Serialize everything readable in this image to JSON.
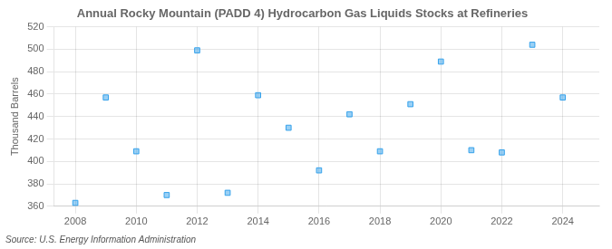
{
  "chart_data": {
    "type": "scatter",
    "title": "Annual Rocky Mountain (PADD 4) Hydrocarbon Gas Liquids Stocks at Refineries",
    "ylabel": "Thousand Barrels",
    "annotations": [
      "Source: U.S. Energy Information Administration"
    ],
    "x": [
      2008,
      2009,
      2010,
      2011,
      2012,
      2013,
      2014,
      2015,
      2016,
      2017,
      2018,
      2019,
      2020,
      2021,
      2022,
      2023,
      2024
    ],
    "values": [
      363,
      457,
      409,
      370,
      499,
      372,
      459,
      430,
      392,
      442,
      409,
      451,
      489,
      410,
      408,
      504,
      457
    ],
    "marker": "square",
    "xlim": [
      2007.3,
      2025.2
    ],
    "xticks": [
      2008,
      2010,
      2012,
      2014,
      2016,
      2018,
      2020,
      2022,
      2024
    ],
    "ylim": [
      360,
      520
    ],
    "yticks": [
      360,
      380,
      400,
      420,
      440,
      460,
      480,
      500,
      520
    ],
    "grid": true
  }
}
